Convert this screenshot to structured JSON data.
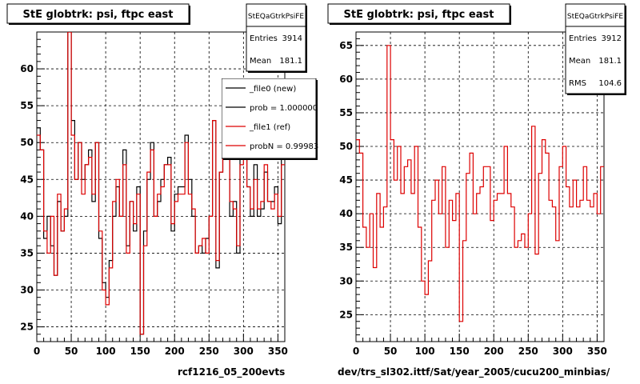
{
  "chart_data": [
    {
      "type": "histogram",
      "title": "StE globtrk: psi, ftpc east",
      "xlim": [
        0,
        360
      ],
      "ylim": [
        23,
        65
      ],
      "xticks": [
        0,
        50,
        100,
        150,
        200,
        250,
        300,
        350
      ],
      "yticks": [
        25,
        30,
        35,
        40,
        45,
        50,
        55,
        60
      ],
      "grid": true,
      "stats": {
        "name": "StEQaGtrkPsiFE",
        "rows": [
          {
            "label": "Entries",
            "value": "3914"
          },
          {
            "label": "Mean",
            "value": "181.1"
          }
        ]
      },
      "legend": {
        "placement": "top-right",
        "entries": [
          {
            "label": "_file0 (new)",
            "color": "#000000"
          },
          {
            "label": "prob = 1.000000",
            "color": "#000000"
          },
          {
            "label": "_file1 (ref)",
            "color": "#dd0000"
          },
          {
            "label": "probN = 0.99983",
            "color": "#dd0000"
          }
        ]
      },
      "bin_width": 5,
      "series": [
        {
          "name": "_file0 (new)",
          "color": "#000000",
          "values": [
            52,
            49,
            37,
            40,
            36,
            32,
            42,
            38,
            40,
            65,
            53,
            45,
            50,
            45,
            47,
            49,
            42,
            50,
            37,
            31,
            29,
            34,
            40,
            44,
            40,
            49,
            36,
            42,
            38,
            44,
            24,
            38,
            45,
            50,
            40,
            42,
            45,
            47,
            48,
            38,
            43,
            44,
            44,
            51,
            45,
            40,
            35,
            36,
            35,
            37,
            40,
            53,
            33,
            46,
            52,
            49,
            40,
            42,
            35,
            50,
            51,
            44,
            40,
            47,
            40,
            41,
            46,
            42,
            42,
            44,
            39,
            48
          ]
        },
        {
          "name": "_file1 (ref)",
          "color": "#dd0000",
          "values": [
            51,
            49,
            38,
            35,
            40,
            32,
            43,
            38,
            41,
            65,
            51,
            45,
            50,
            43,
            47,
            48,
            43,
            50,
            38,
            30,
            28,
            33,
            42,
            45,
            40,
            47,
            35,
            42,
            39,
            43,
            24,
            36,
            46,
            49,
            40,
            43,
            44,
            47,
            47,
            39,
            42,
            43,
            43,
            50,
            43,
            41,
            35,
            36,
            37,
            35,
            40,
            53,
            34,
            46,
            51,
            49,
            42,
            41,
            36,
            47,
            50,
            44,
            41,
            45,
            41,
            42,
            47,
            42,
            41,
            43,
            40,
            47
          ]
        }
      ]
    },
    {
      "type": "histogram",
      "title": "StE globtrk: psi, ftpc east",
      "xlim": [
        0,
        360
      ],
      "ylim": [
        21,
        67
      ],
      "xticks": [
        0,
        50,
        100,
        150,
        200,
        250,
        300,
        350
      ],
      "yticks": [
        25,
        30,
        35,
        40,
        45,
        50,
        55,
        60,
        65
      ],
      "grid": true,
      "stats": {
        "name": "StEQaGtrkPsiFE",
        "rows": [
          {
            "label": "Entries",
            "value": "3912"
          },
          {
            "label": "Mean",
            "value": "181.1"
          },
          {
            "label": "RMS",
            "value": "104.6"
          }
        ]
      },
      "bin_width": 5,
      "series": [
        {
          "name": "",
          "color": "#dd0000",
          "values": [
            51,
            49,
            38,
            35,
            40,
            32,
            43,
            38,
            41,
            65,
            51,
            45,
            50,
            43,
            47,
            48,
            43,
            50,
            38,
            30,
            28,
            33,
            42,
            45,
            40,
            47,
            35,
            42,
            39,
            43,
            24,
            36,
            46,
            49,
            40,
            43,
            44,
            47,
            47,
            39,
            42,
            43,
            43,
            50,
            43,
            41,
            35,
            36,
            37,
            35,
            40,
            53,
            34,
            46,
            51,
            49,
            42,
            41,
            36,
            47,
            50,
            44,
            41,
            45,
            41,
            42,
            47,
            42,
            41,
            43,
            40,
            47
          ]
        }
      ]
    }
  ],
  "footer": {
    "left": "rcf1216_05_200evts",
    "right": "dev/trs_sl302.ittf/Sat/year_2005/cucu200_minbias/"
  }
}
